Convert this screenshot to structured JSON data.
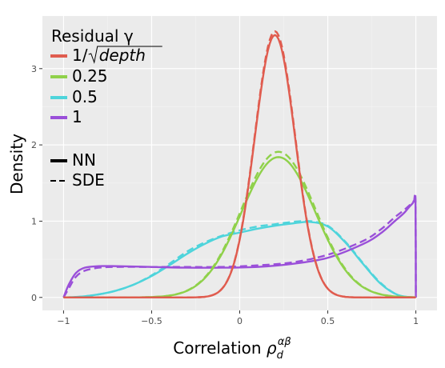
{
  "chart_data": {
    "type": "line",
    "title": "",
    "xlabel_main": "Correlation ",
    "xlabel_symbol": "ρ",
    "xlabel_sub": "d",
    "xlabel_sup": "αβ",
    "ylabel": "Density",
    "xlim": [
      -1.12,
      1.12
    ],
    "ylim": [
      -0.17,
      3.69
    ],
    "xticks": [
      -1,
      -0.5,
      0,
      0.5,
      1
    ],
    "xtick_labels": [
      "−1",
      "−0.5",
      "0",
      "0.5",
      "1"
    ],
    "yticks": [
      0,
      1,
      2,
      3
    ],
    "ytick_labels": [
      "0",
      "1",
      "2",
      "3"
    ],
    "grid": true,
    "legend_position": "top-left",
    "legend_colour_title": "Residual  γ",
    "legend_linetype_title": "",
    "series": [
      {
        "name": "1/√depth",
        "name_prefix": "1/",
        "name_radicand": "depth",
        "color": "#e05c4f",
        "kind": "gaussian",
        "mu": 0.2,
        "sigma": 0.115,
        "peak_nn": 3.44,
        "peak_sde": 3.49
      },
      {
        "name": "0.25",
        "color": "#8fd14a",
        "kind": "gaussian",
        "mu": 0.22,
        "sigma": 0.21,
        "peak_nn": 1.84,
        "peak_sde": 1.91
      },
      {
        "name": "0.5",
        "color": "#4ed4db",
        "kind": "broad",
        "x": [
          -1,
          -0.9,
          -0.8,
          -0.7,
          -0.6,
          -0.5,
          -0.4,
          -0.3,
          -0.2,
          -0.1,
          0,
          0.1,
          0.2,
          0.3,
          0.4,
          0.5,
          0.6,
          0.7,
          0.8,
          0.9,
          1
        ],
        "nn": [
          0,
          0.01,
          0.04,
          0.09,
          0.17,
          0.28,
          0.42,
          0.57,
          0.7,
          0.8,
          0.85,
          0.9,
          0.94,
          0.97,
          0.99,
          0.93,
          0.72,
          0.44,
          0.18,
          0.03,
          0
        ],
        "sde": [
          0,
          0.01,
          0.04,
          0.09,
          0.17,
          0.29,
          0.44,
          0.6,
          0.72,
          0.81,
          0.88,
          0.93,
          0.96,
          0.99,
          1.0,
          0.94,
          0.73,
          0.45,
          0.19,
          0.03,
          0
        ]
      },
      {
        "name": "1",
        "color": "#9a4fd9",
        "kind": "edge",
        "x": [
          -1,
          -0.97,
          -0.93,
          -0.88,
          -0.8,
          -0.7,
          -0.5,
          -0.3,
          -0.1,
          0.1,
          0.3,
          0.5,
          0.7,
          0.8,
          0.88,
          0.93,
          0.96,
          0.98,
          0.99,
          0.998,
          1
        ],
        "nn": [
          0,
          0.17,
          0.32,
          0.39,
          0.41,
          0.41,
          0.4,
          0.39,
          0.39,
          0.4,
          0.44,
          0.52,
          0.7,
          0.84,
          1.0,
          1.1,
          1.18,
          1.23,
          1.26,
          1.23,
          0
        ],
        "sde": [
          0,
          0.12,
          0.27,
          0.35,
          0.39,
          0.4,
          0.4,
          0.4,
          0.4,
          0.42,
          0.46,
          0.56,
          0.74,
          0.89,
          1.05,
          1.14,
          1.2,
          1.24,
          1.27,
          1.27,
          0
        ]
      }
    ],
    "linetypes": [
      {
        "name": "NN",
        "dash": "solid"
      },
      {
        "name": "SDE",
        "dash": "dashed"
      }
    ]
  }
}
